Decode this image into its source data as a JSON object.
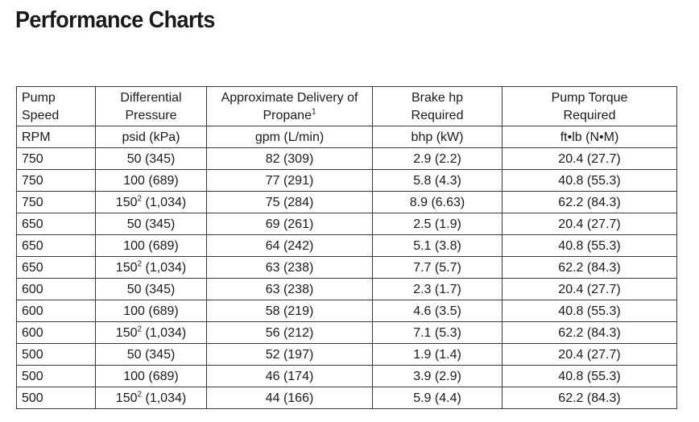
{
  "page": {
    "title": "Performance Charts"
  },
  "table": {
    "header": [
      [
        "Pump",
        "Speed"
      ],
      [
        "Differential",
        "Pressure"
      ],
      [
        "Approximate Delivery of",
        "Propane¹"
      ],
      [
        "Brake hp",
        "Required"
      ],
      [
        "Pump Torque",
        "Required"
      ]
    ],
    "units": [
      "RPM",
      "psid (kPa)",
      "gpm (L/min)",
      "bhp (kW)",
      "ft•lb (N•M)"
    ],
    "rows": [
      [
        "750",
        "50 (345)",
        "82 (309)",
        "2.9 (2.2)",
        "20.4 (27.7)"
      ],
      [
        "750",
        "100 (689)",
        "77 (291)",
        "5.8 (4.3)",
        "40.8 (55.3)"
      ],
      [
        "750",
        "150² (1,034)",
        "75 (284)",
        "8.9 (6.63)",
        "62.2 (84.3)"
      ],
      [
        "650",
        "50 (345)",
        "69 (261)",
        "2.5 (1.9)",
        "20.4 (27.7)"
      ],
      [
        "650",
        "100 (689)",
        "64 (242)",
        "5.1 (3.8)",
        "40.8 (55.3)"
      ],
      [
        "650",
        "150² (1,034)",
        "63 (238)",
        "7.7 (5.7)",
        "62.2 (84.3)"
      ],
      [
        "600",
        "50 (345)",
        "63 (238)",
        "2.3 (1.7)",
        "20.4 (27.7)"
      ],
      [
        "600",
        "100 (689)",
        "58 (219)",
        "4.6 (3.5)",
        "40.8 (55.3)"
      ],
      [
        "600",
        "150² (1,034)",
        "56 (212)",
        "7.1 (5.3)",
        "62.2 (84.3)"
      ],
      [
        "500",
        "50 (345)",
        "52 (197)",
        "1.9 (1.4)",
        "20.4 (27.7)"
      ],
      [
        "500",
        "100 (689)",
        "46 (174)",
        "3.9 (2.9)",
        "40.8 (55.3)"
      ],
      [
        "500",
        "150² (1,034)",
        "44 (166)",
        "5.9 (4.4)",
        "62.2 (84.3)"
      ]
    ]
  }
}
